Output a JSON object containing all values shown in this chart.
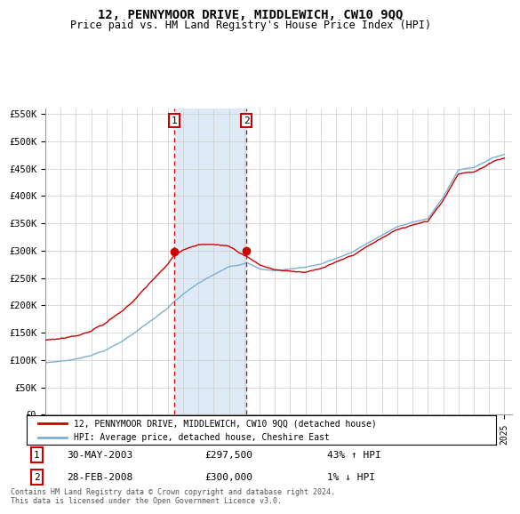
{
  "title": "12, PENNYMOOR DRIVE, MIDDLEWICH, CW10 9QQ",
  "subtitle": "Price paid vs. HM Land Registry's House Price Index (HPI)",
  "ylabel_ticks": [
    "£0",
    "£50K",
    "£100K",
    "£150K",
    "£200K",
    "£250K",
    "£300K",
    "£350K",
    "£400K",
    "£450K",
    "£500K",
    "£550K"
  ],
  "ytick_values": [
    0,
    50000,
    100000,
    150000,
    200000,
    250000,
    300000,
    350000,
    400000,
    450000,
    500000,
    550000
  ],
  "sale1_date": "30-MAY-2003",
  "sale1_price": 297500,
  "sale1_hpi": "43% ↑ HPI",
  "sale1_year": 2003.42,
  "sale2_date": "28-FEB-2008",
  "sale2_price": 300000,
  "sale2_hpi": "1% ↓ HPI",
  "sale2_year": 2008.15,
  "red_line_color": "#cc0000",
  "blue_line_color": "#7ab0d4",
  "shaded_color": "#deeaf5",
  "legend_label1": "12, PENNYMOOR DRIVE, MIDDLEWICH, CW10 9QQ (detached house)",
  "legend_label2": "HPI: Average price, detached house, Cheshire East",
  "footnote": "Contains HM Land Registry data © Crown copyright and database right 2024.\nThis data is licensed under the Open Government Licence v3.0.",
  "xmin": 1995,
  "xmax": 2025.5,
  "ymin": 0,
  "ymax": 560000
}
